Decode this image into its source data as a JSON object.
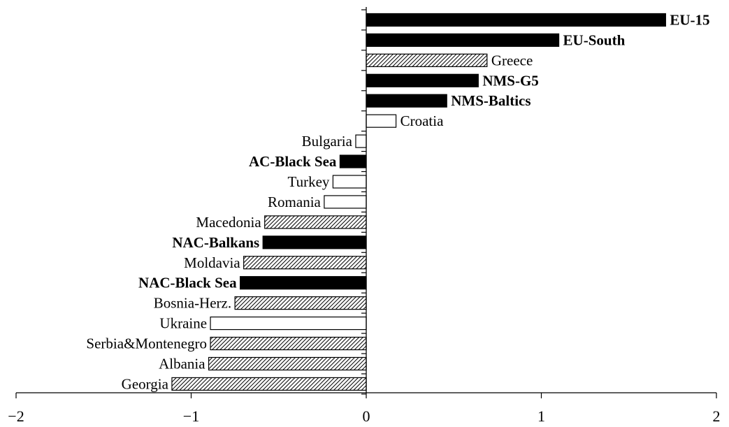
{
  "chart_data": {
    "type": "bar",
    "orientation": "horizontal",
    "title": "",
    "xlabel": "",
    "ylabel": "",
    "xlim": [
      -2,
      2
    ],
    "xticks": [
      -2,
      -1,
      0,
      1,
      2
    ],
    "xtick_labels": [
      "−2",
      "−1",
      "0",
      "1",
      "2"
    ],
    "grid": false,
    "legend": "none",
    "colors": {
      "aggregate": "#000000",
      "hatched": "#d8d8d8",
      "open": "#ffffff"
    },
    "categories": [
      "EU-15",
      "EU-South",
      "Greece",
      "NMS-G5",
      "NMS-Baltics",
      "Croatia",
      "Bulgaria",
      "AC-Black Sea",
      "Turkey",
      "Romania",
      "Macedonia",
      "NAC-Balkans",
      "Moldavia",
      "NAC-Black Sea",
      "Bosnia-Herz.",
      "Ukraine",
      "Serbia&Montenegro",
      "Albania",
      "Georgia"
    ],
    "values": [
      1.71,
      1.1,
      0.69,
      0.64,
      0.46,
      0.17,
      -0.06,
      -0.15,
      -0.19,
      -0.24,
      -0.58,
      -0.59,
      -0.7,
      -0.72,
      -0.75,
      -0.89,
      -0.89,
      -0.9,
      -1.11
    ],
    "styles": [
      "solid",
      "solid",
      "hatched",
      "solid",
      "solid",
      "open",
      "open",
      "solid",
      "open",
      "open",
      "hatched",
      "solid",
      "hatched",
      "solid",
      "hatched",
      "open",
      "hatched",
      "hatched",
      "hatched"
    ],
    "bold_labels": [
      true,
      true,
      false,
      true,
      true,
      false,
      false,
      true,
      false,
      false,
      false,
      true,
      false,
      true,
      false,
      false,
      false,
      false,
      false
    ]
  }
}
